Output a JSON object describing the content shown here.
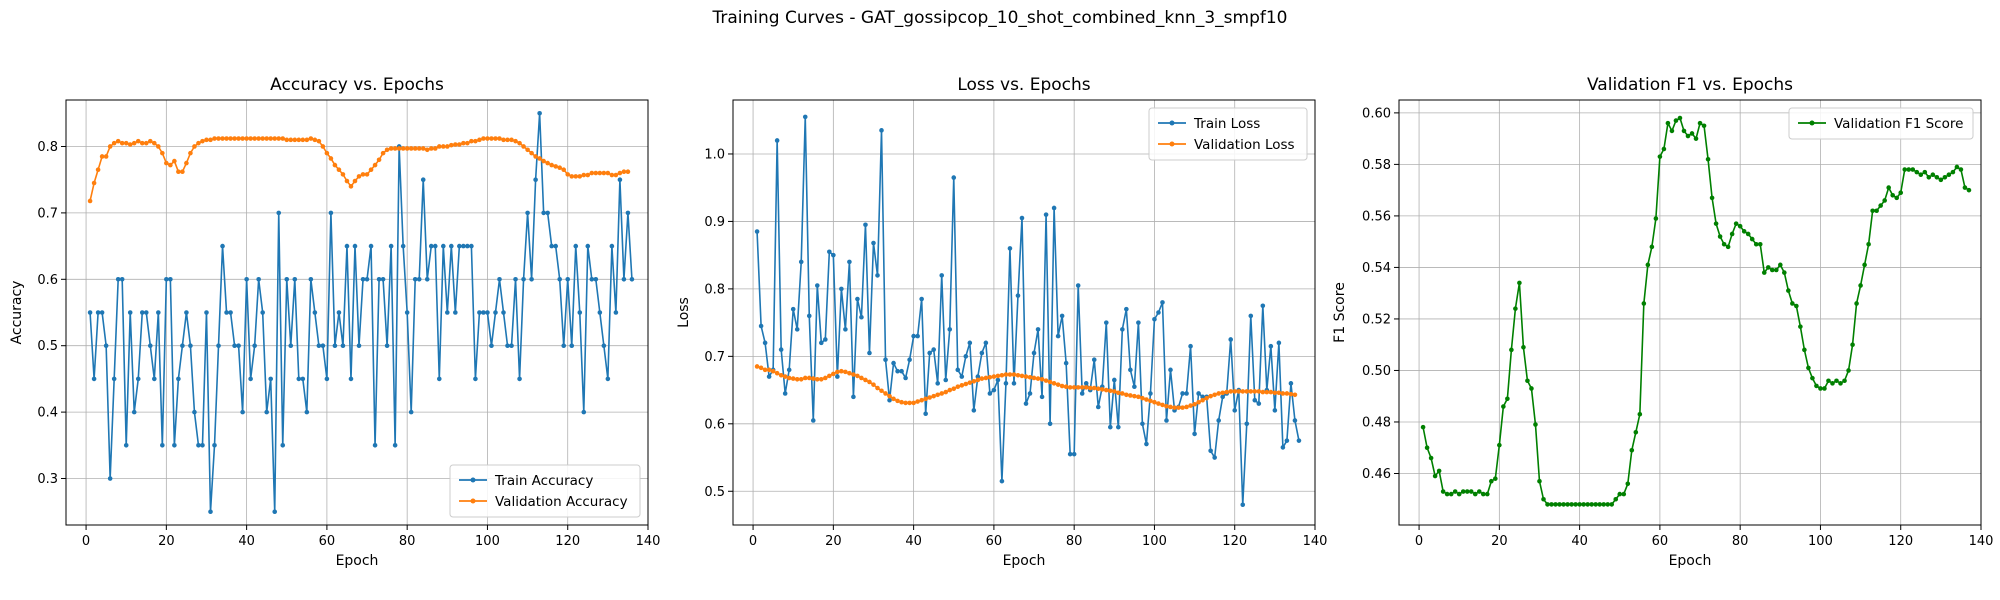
{
  "figure": {
    "suptitle": "Training Curves - GAT_gossipcop_10_shot_combined_knn_3_smpf10"
  },
  "chart_data": [
    {
      "type": "line",
      "title": "Accuracy vs. Epochs",
      "xlabel": "Epoch",
      "ylabel": "Accuracy",
      "xlim": [
        -5,
        140
      ],
      "ylim": [
        0.23,
        0.87
      ],
      "xticks": [
        0,
        20,
        40,
        60,
        80,
        100,
        120,
        140
      ],
      "yticks": [
        0.3,
        0.4,
        0.5,
        0.6,
        0.7,
        0.8
      ],
      "grid": true,
      "legend": "lower right",
      "series": [
        {
          "name": "Train Accuracy",
          "color": "#1f77b4",
          "x_start": 1,
          "values": [
            0.55,
            0.45,
            0.55,
            0.55,
            0.5,
            0.3,
            0.45,
            0.6,
            0.6,
            0.35,
            0.55,
            0.4,
            0.45,
            0.55,
            0.55,
            0.5,
            0.45,
            0.55,
            0.35,
            0.6,
            0.6,
            0.35,
            0.45,
            0.5,
            0.55,
            0.5,
            0.4,
            0.35,
            0.35,
            0.55,
            0.25,
            0.35,
            0.5,
            0.65,
            0.55,
            0.55,
            0.5,
            0.5,
            0.4,
            0.6,
            0.45,
            0.5,
            0.6,
            0.55,
            0.4,
            0.45,
            0.25,
            0.7,
            0.35,
            0.6,
            0.5,
            0.6,
            0.45,
            0.45,
            0.4,
            0.6,
            0.55,
            0.5,
            0.5,
            0.45,
            0.7,
            0.5,
            0.55,
            0.5,
            0.65,
            0.45,
            0.65,
            0.5,
            0.6,
            0.6,
            0.65,
            0.35,
            0.6,
            0.6,
            0.5,
            0.65,
            0.35,
            0.8,
            0.65,
            0.55,
            0.4,
            0.6,
            0.6,
            0.75,
            0.6,
            0.65,
            0.65,
            0.45,
            0.65,
            0.55,
            0.65,
            0.55,
            0.65,
            0.65,
            0.65,
            0.65,
            0.45,
            0.55,
            0.55,
            0.55,
            0.5,
            0.55,
            0.6,
            0.55,
            0.5,
            0.5,
            0.6,
            0.45,
            0.6,
            0.7,
            0.6,
            0.75,
            0.85,
            0.7,
            0.7,
            0.65,
            0.65,
            0.6,
            0.5,
            0.6,
            0.5,
            0.65,
            0.55,
            0.4,
            0.65,
            0.6,
            0.6,
            0.55,
            0.5,
            0.45,
            0.65,
            0.55,
            0.75,
            0.6,
            0.7,
            0.6
          ]
        },
        {
          "name": "Validation Accuracy",
          "color": "#ff7f0e",
          "x_start": 1,
          "values": [
            0.718,
            0.745,
            0.765,
            0.785,
            0.785,
            0.8,
            0.805,
            0.808,
            0.805,
            0.805,
            0.803,
            0.805,
            0.808,
            0.805,
            0.805,
            0.808,
            0.805,
            0.8,
            0.79,
            0.775,
            0.772,
            0.778,
            0.762,
            0.762,
            0.775,
            0.79,
            0.8,
            0.805,
            0.808,
            0.81,
            0.81,
            0.812,
            0.812,
            0.812,
            0.812,
            0.812,
            0.812,
            0.812,
            0.812,
            0.812,
            0.812,
            0.812,
            0.812,
            0.812,
            0.812,
            0.812,
            0.812,
            0.812,
            0.812,
            0.81,
            0.81,
            0.81,
            0.81,
            0.81,
            0.81,
            0.812,
            0.81,
            0.808,
            0.8,
            0.79,
            0.782,
            0.772,
            0.765,
            0.758,
            0.748,
            0.74,
            0.748,
            0.755,
            0.758,
            0.758,
            0.765,
            0.772,
            0.78,
            0.79,
            0.795,
            0.797,
            0.797,
            0.797,
            0.797,
            0.797,
            0.797,
            0.797,
            0.797,
            0.797,
            0.795,
            0.797,
            0.797,
            0.8,
            0.8,
            0.8,
            0.802,
            0.803,
            0.803,
            0.805,
            0.805,
            0.808,
            0.808,
            0.81,
            0.812,
            0.812,
            0.812,
            0.812,
            0.812,
            0.81,
            0.81,
            0.81,
            0.808,
            0.805,
            0.8,
            0.795,
            0.79,
            0.785,
            0.782,
            0.778,
            0.775,
            0.772,
            0.77,
            0.768,
            0.765,
            0.758,
            0.755,
            0.755,
            0.755,
            0.757,
            0.757,
            0.76,
            0.76,
            0.76,
            0.76,
            0.76,
            0.757,
            0.757,
            0.76,
            0.762,
            0.762
          ]
        }
      ]
    },
    {
      "type": "line",
      "title": "Loss vs. Epochs",
      "xlabel": "Epoch",
      "ylabel": "Loss",
      "xlim": [
        -5,
        140
      ],
      "ylim": [
        0.45,
        1.08
      ],
      "xticks": [
        0,
        20,
        40,
        60,
        80,
        100,
        120,
        140
      ],
      "yticks": [
        0.5,
        0.6,
        0.7,
        0.8,
        0.9,
        1.0
      ],
      "grid": true,
      "legend": "upper right",
      "series": [
        {
          "name": "Train Loss",
          "color": "#1f77b4",
          "x_start": 1,
          "values": [
            0.885,
            0.745,
            0.72,
            0.67,
            0.68,
            1.02,
            0.71,
            0.645,
            0.68,
            0.77,
            0.74,
            0.84,
            1.055,
            0.76,
            0.605,
            0.805,
            0.72,
            0.725,
            0.855,
            0.85,
            0.67,
            0.8,
            0.74,
            0.84,
            0.64,
            0.785,
            0.758,
            0.895,
            0.705,
            0.868,
            0.82,
            1.035,
            0.695,
            0.635,
            0.69,
            0.678,
            0.678,
            0.668,
            0.695,
            0.73,
            0.73,
            0.785,
            0.615,
            0.705,
            0.71,
            0.66,
            0.82,
            0.665,
            0.74,
            0.965,
            0.68,
            0.67,
            0.7,
            0.72,
            0.62,
            0.67,
            0.705,
            0.72,
            0.645,
            0.65,
            0.665,
            0.515,
            0.66,
            0.86,
            0.66,
            0.79,
            0.905,
            0.63,
            0.645,
            0.705,
            0.74,
            0.64,
            0.91,
            0.6,
            0.92,
            0.73,
            0.76,
            0.69,
            0.555,
            0.555,
            0.805,
            0.645,
            0.66,
            0.65,
            0.695,
            0.625,
            0.655,
            0.75,
            0.595,
            0.665,
            0.595,
            0.74,
            0.77,
            0.68,
            0.655,
            0.75,
            0.6,
            0.57,
            0.645,
            0.755,
            0.765,
            0.78,
            0.605,
            0.68,
            0.62,
            0.625,
            0.645,
            0.645,
            0.715,
            0.585,
            0.645,
            0.64,
            0.64,
            0.56,
            0.55,
            0.605,
            0.64,
            0.645,
            0.725,
            0.62,
            0.65,
            0.48,
            0.6,
            0.76,
            0.635,
            0.63,
            0.775,
            0.65,
            0.715,
            0.62,
            0.72,
            0.565,
            0.575,
            0.66,
            0.605,
            0.575
          ]
        },
        {
          "name": "Validation Loss",
          "color": "#ff7f0e",
          "x_start": 1,
          "values": [
            0.685,
            0.683,
            0.68,
            0.68,
            0.678,
            0.675,
            0.672,
            0.67,
            0.668,
            0.667,
            0.666,
            0.666,
            0.668,
            0.668,
            0.667,
            0.666,
            0.666,
            0.668,
            0.671,
            0.674,
            0.677,
            0.678,
            0.677,
            0.675,
            0.673,
            0.671,
            0.668,
            0.665,
            0.662,
            0.658,
            0.653,
            0.649,
            0.645,
            0.641,
            0.637,
            0.634,
            0.632,
            0.631,
            0.631,
            0.631,
            0.633,
            0.635,
            0.637,
            0.639,
            0.641,
            0.643,
            0.645,
            0.647,
            0.65,
            0.652,
            0.655,
            0.657,
            0.659,
            0.661,
            0.663,
            0.665,
            0.667,
            0.668,
            0.669,
            0.67,
            0.671,
            0.672,
            0.673,
            0.673,
            0.673,
            0.672,
            0.671,
            0.67,
            0.669,
            0.668,
            0.667,
            0.666,
            0.664,
            0.662,
            0.66,
            0.658,
            0.656,
            0.655,
            0.654,
            0.654,
            0.654,
            0.654,
            0.654,
            0.653,
            0.653,
            0.652,
            0.651,
            0.65,
            0.649,
            0.648,
            0.646,
            0.645,
            0.643,
            0.642,
            0.641,
            0.64,
            0.638,
            0.636,
            0.634,
            0.632,
            0.63,
            0.628,
            0.626,
            0.625,
            0.624,
            0.624,
            0.624,
            0.625,
            0.627,
            0.629,
            0.632,
            0.635,
            0.638,
            0.641,
            0.643,
            0.645,
            0.646,
            0.647,
            0.648,
            0.648,
            0.648,
            0.648,
            0.648,
            0.648,
            0.648,
            0.648,
            0.647,
            0.647,
            0.647,
            0.646,
            0.646,
            0.645,
            0.645,
            0.644,
            0.643
          ]
        }
      ]
    },
    {
      "type": "line",
      "title": "Validation F1 vs. Epochs",
      "xlabel": "Epoch",
      "ylabel": "F1 Score",
      "xlim": [
        -5,
        140
      ],
      "ylim": [
        0.44,
        0.605
      ],
      "xticks": [
        0,
        20,
        40,
        60,
        80,
        100,
        120,
        140
      ],
      "yticks": [
        0.46,
        0.48,
        0.5,
        0.52,
        0.54,
        0.56,
        0.58,
        0.6
      ],
      "grid": true,
      "legend": "upper right",
      "series": [
        {
          "name": "Validation F1 Score",
          "color": "#008000",
          "x_start": 1,
          "values": [
            0.478,
            0.47,
            0.466,
            0.459,
            0.461,
            0.453,
            0.452,
            0.452,
            0.453,
            0.452,
            0.453,
            0.453,
            0.453,
            0.452,
            0.453,
            0.452,
            0.452,
            0.457,
            0.458,
            0.471,
            0.486,
            0.489,
            0.508,
            0.524,
            0.534,
            0.509,
            0.496,
            0.493,
            0.479,
            0.457,
            0.45,
            0.448,
            0.448,
            0.448,
            0.448,
            0.448,
            0.448,
            0.448,
            0.448,
            0.448,
            0.448,
            0.448,
            0.448,
            0.448,
            0.448,
            0.448,
            0.448,
            0.448,
            0.45,
            0.452,
            0.452,
            0.456,
            0.469,
            0.476,
            0.483,
            0.526,
            0.541,
            0.548,
            0.559,
            0.583,
            0.586,
            0.596,
            0.593,
            0.597,
            0.598,
            0.593,
            0.591,
            0.592,
            0.59,
            0.596,
            0.595,
            0.582,
            0.567,
            0.557,
            0.552,
            0.549,
            0.548,
            0.553,
            0.557,
            0.556,
            0.554,
            0.553,
            0.551,
            0.549,
            0.549,
            0.538,
            0.54,
            0.539,
            0.539,
            0.541,
            0.538,
            0.531,
            0.526,
            0.525,
            0.517,
            0.508,
            0.501,
            0.497,
            0.494,
            0.493,
            0.493,
            0.496,
            0.495,
            0.496,
            0.495,
            0.496,
            0.5,
            0.51,
            0.526,
            0.533,
            0.541,
            0.549,
            0.562,
            0.562,
            0.564,
            0.566,
            0.571,
            0.568,
            0.567,
            0.569,
            0.578,
            0.578,
            0.578,
            0.577,
            0.576,
            0.577,
            0.575,
            0.576,
            0.575,
            0.574,
            0.575,
            0.576,
            0.577,
            0.579,
            0.578,
            0.571,
            0.57
          ]
        }
      ]
    }
  ]
}
